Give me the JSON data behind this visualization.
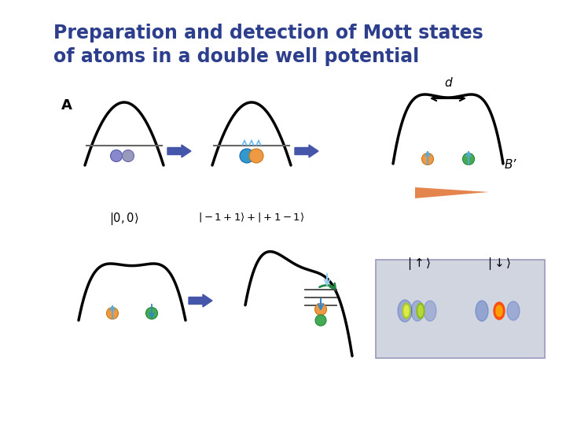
{
  "title_line1": "Preparation and detection of Mott states",
  "title_line2": "of atoms in a double well potential",
  "title_color": "#2c3e8c",
  "title_fontsize": 17,
  "bg_color": "#ffffff",
  "label_A": "A",
  "label_d": "d",
  "label_Bprime": "B’",
  "well_lw": 2.5,
  "arrow_color": "#4455aa",
  "atom_blue": "#7788cc",
  "atom_orange": "#ee9944",
  "atom_green": "#44aa55",
  "atom_teal": "#33aaaa"
}
